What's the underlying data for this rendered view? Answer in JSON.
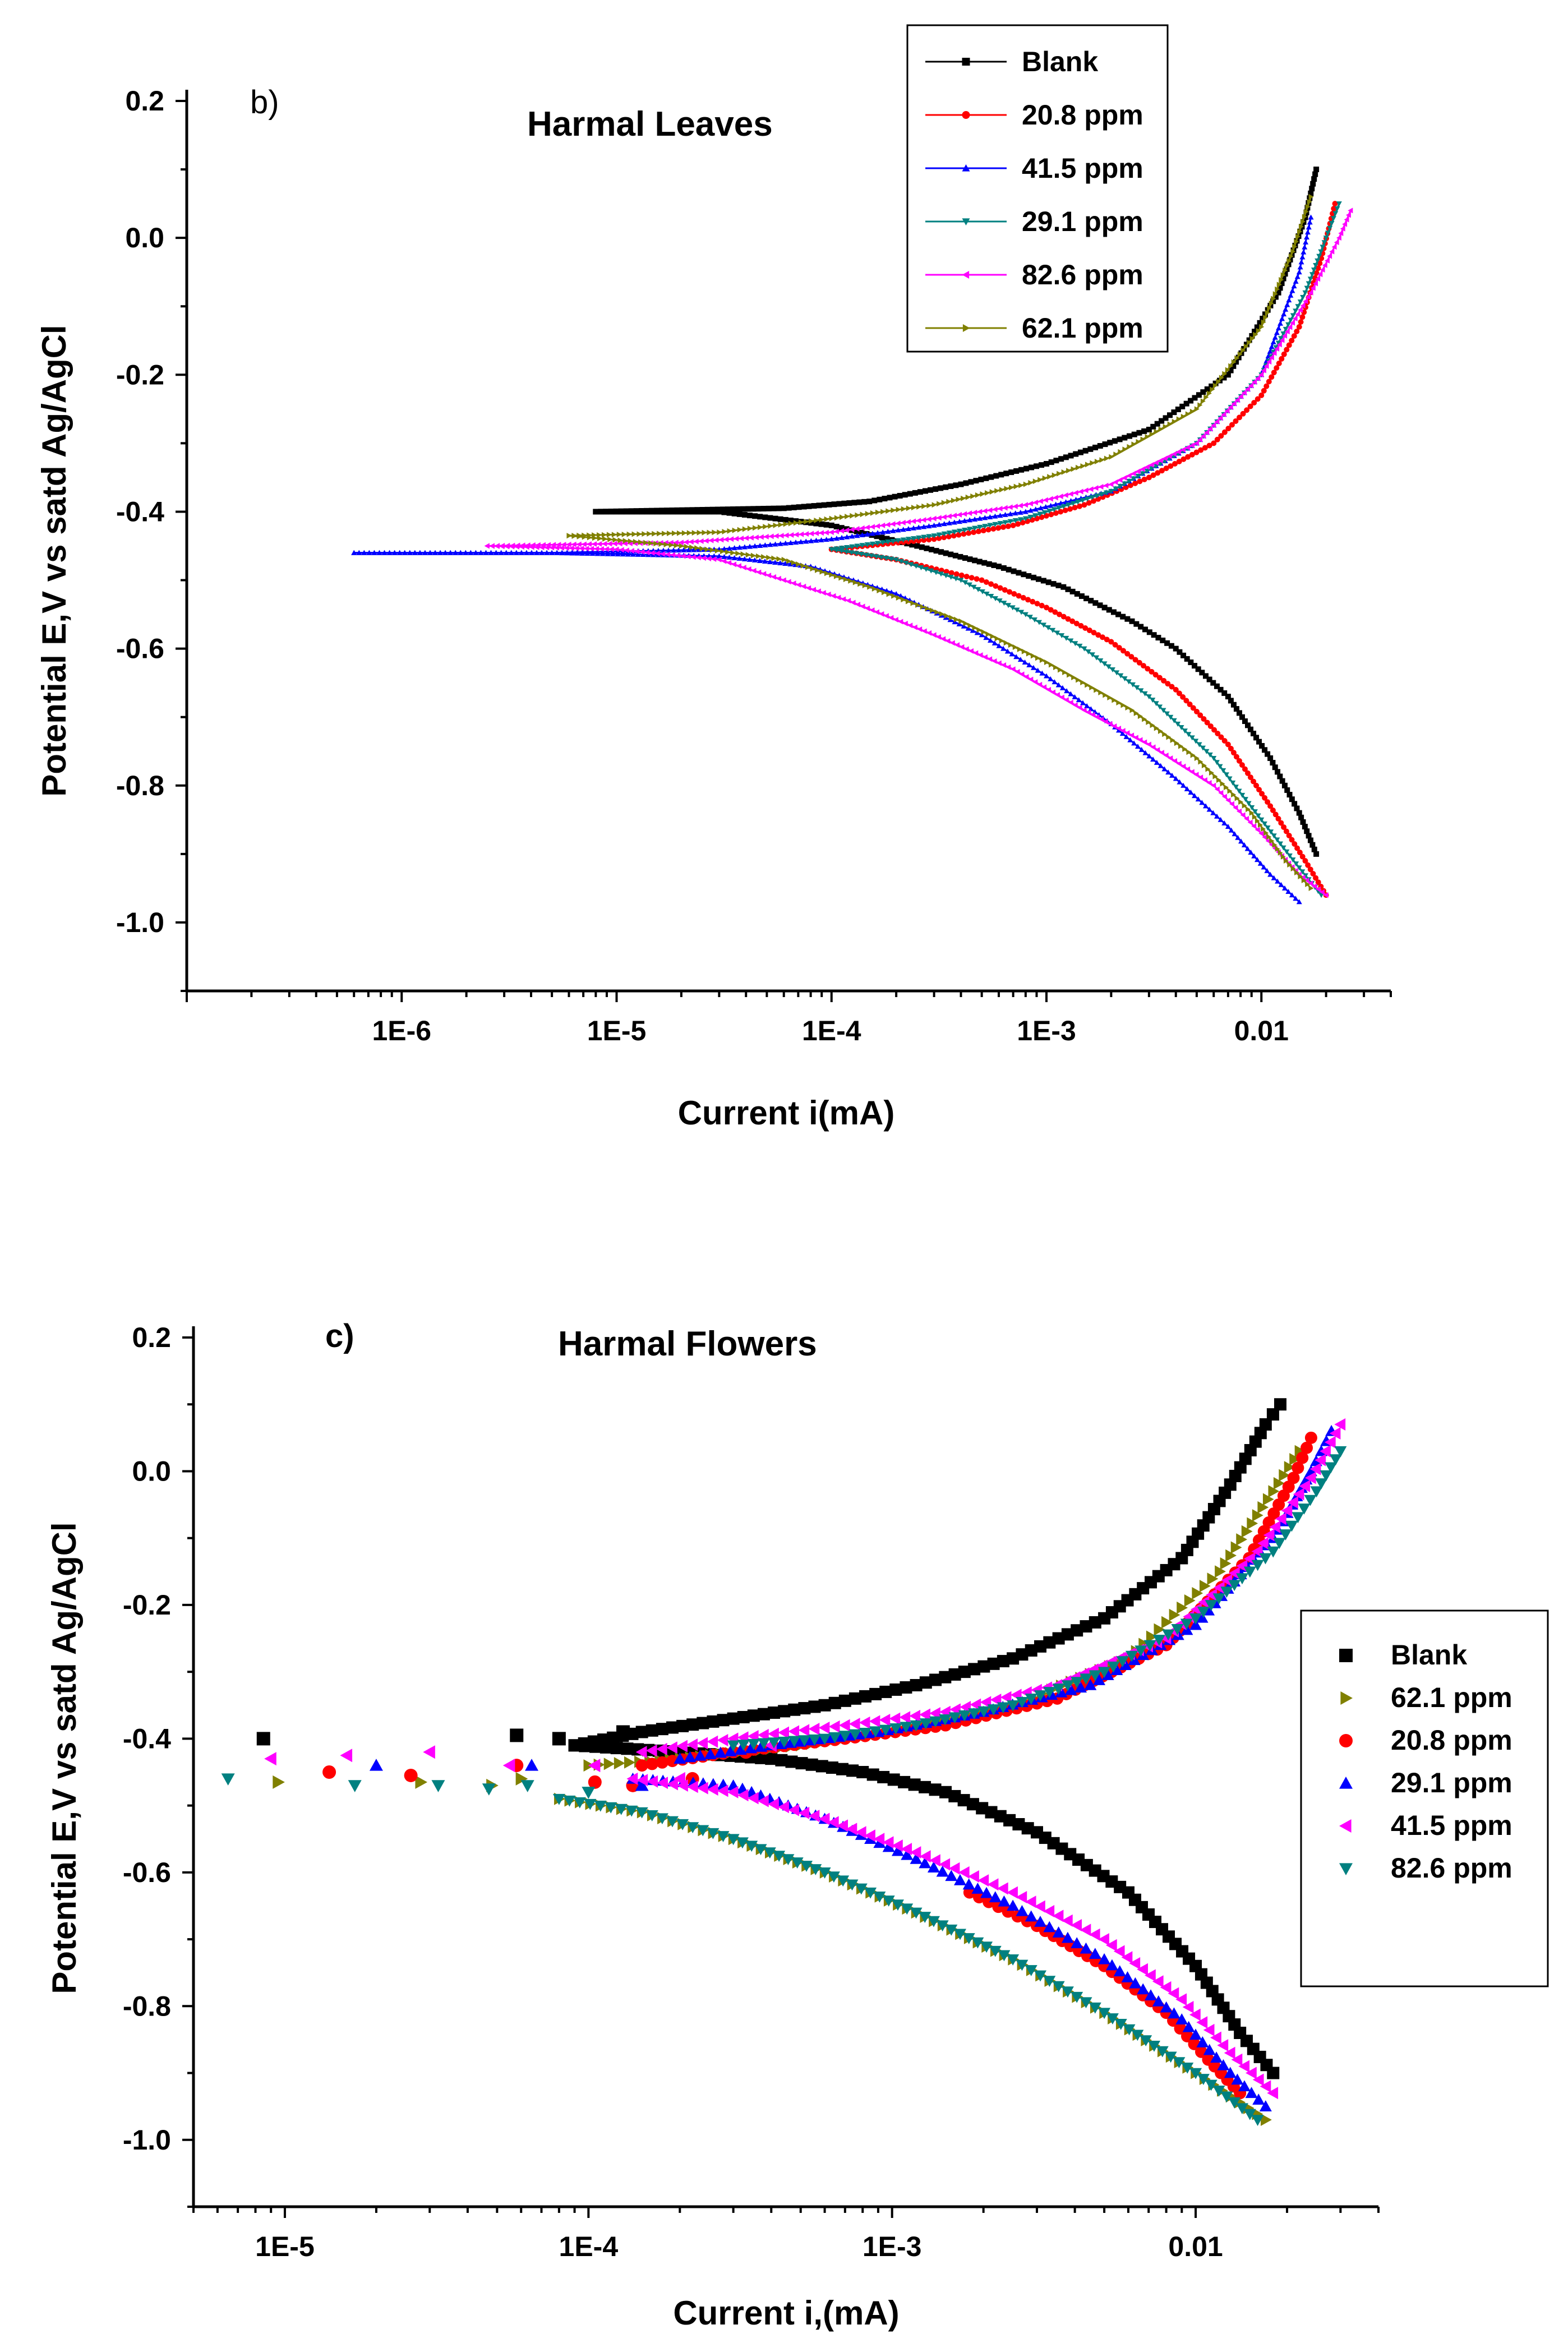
{
  "chart_data": [
    {
      "type": "line",
      "panel_label": "b)",
      "title": "Harmal Leaves",
      "xlabel": "Current i(mA)",
      "ylabel": "Potential E,V vs satd Ag/AgCl",
      "xscale": "log",
      "xlim": [
        1e-07,
        0.04
      ],
      "ylim": [
        -1.1,
        0.2
      ],
      "xticks": [
        1e-06,
        1e-05,
        0.0001,
        0.001,
        0.01
      ],
      "xtick_labels": [
        "1E-6",
        "1E-5",
        "1E-4",
        "1E-3",
        "0.01"
      ],
      "yticks": [
        0.2,
        0.0,
        -0.2,
        -0.4,
        -0.6,
        -0.8,
        -1.0
      ],
      "ytick_labels": [
        "0.2",
        "0.0",
        "-0.2",
        "-0.4",
        "-0.6",
        "-0.8",
        "-1.0"
      ],
      "legend_position": "top-right",
      "series": [
        {
          "name": "Blank",
          "color": "#000000",
          "marker": "square",
          "anodic": {
            "x": [
              8e-06,
              6e-05,
              0.00015,
              0.0004,
              0.001,
              0.003,
              0.007,
              0.012,
              0.016,
              0.018
            ],
            "y": [
              -0.4,
              -0.395,
              -0.385,
              -0.36,
              -0.33,
              -0.28,
              -0.2,
              -0.08,
              0.03,
              0.1
            ]
          },
          "cathodic": {
            "x": [
              8e-06,
              3e-05,
              0.0001,
              0.00025,
              0.0006,
              0.0012,
              0.0025,
              0.004,
              0.007,
              0.011,
              0.015,
              0.018
            ],
            "y": [
              -0.4,
              -0.4,
              -0.42,
              -0.45,
              -0.48,
              -0.51,
              -0.56,
              -0.6,
              -0.67,
              -0.76,
              -0.84,
              -0.9
            ]
          }
        },
        {
          "name": "20.8 ppm",
          "color": "#ff0000",
          "marker": "circle",
          "anodic": {
            "x": [
              0.0001,
              0.0003,
              0.0007,
              0.0015,
              0.003,
              0.006,
              0.01,
              0.015,
              0.019,
              0.022
            ],
            "y": [
              -0.455,
              -0.44,
              -0.42,
              -0.39,
              -0.35,
              -0.3,
              -0.23,
              -0.13,
              -0.03,
              0.05
            ]
          },
          "cathodic": {
            "x": [
              0.0001,
              0.0002,
              0.0005,
              0.001,
              0.002,
              0.004,
              0.007,
              0.011,
              0.016,
              0.02
            ],
            "y": [
              -0.455,
              -0.47,
              -0.5,
              -0.54,
              -0.59,
              -0.66,
              -0.74,
              -0.83,
              -0.91,
              -0.96
            ]
          }
        },
        {
          "name": "41.5 ppm",
          "color": "#0000ff",
          "marker": "triangle-up",
          "anodic": {
            "x": [
              6e-07,
              5e-06,
              3e-05,
              0.0001,
              0.0003,
              0.0008,
              0.002,
              0.005,
              0.01,
              0.015,
              0.017
            ],
            "y": [
              -0.46,
              -0.46,
              -0.455,
              -0.44,
              -0.42,
              -0.4,
              -0.37,
              -0.3,
              -0.2,
              -0.05,
              0.03
            ]
          },
          "cathodic": {
            "x": [
              6e-07,
              5e-06,
              3e-05,
              8e-05,
              0.0002,
              0.0005,
              0.001,
              0.002,
              0.004,
              0.007,
              0.011,
              0.015
            ],
            "y": [
              -0.46,
              -0.46,
              -0.465,
              -0.48,
              -0.52,
              -0.58,
              -0.64,
              -0.71,
              -0.79,
              -0.86,
              -0.93,
              -0.97
            ]
          }
        },
        {
          "name": "29.1 ppm",
          "color": "#008080",
          "marker": "triangle-down",
          "anodic": {
            "x": [
              0.0001,
              0.0003,
              0.0008,
              0.002,
              0.005,
              0.01,
              0.016,
              0.02,
              0.023
            ],
            "y": [
              -0.455,
              -0.435,
              -0.41,
              -0.37,
              -0.3,
              -0.2,
              -0.08,
              0.0,
              0.05
            ]
          },
          "cathodic": {
            "x": [
              0.0001,
              0.0002,
              0.0004,
              0.0008,
              0.0015,
              0.003,
              0.006,
              0.01,
              0.015,
              0.019
            ],
            "y": [
              -0.455,
              -0.47,
              -0.5,
              -0.55,
              -0.6,
              -0.67,
              -0.76,
              -0.85,
              -0.92,
              -0.96
            ]
          }
        },
        {
          "name": "82.6 ppm",
          "color": "#ff00ff",
          "marker": "triangle-left",
          "anodic": {
            "x": [
              2.5e-06,
              2e-05,
              0.0001,
              0.0003,
              0.0008,
              0.002,
              0.005,
              0.01,
              0.017,
              0.023,
              0.026
            ],
            "y": [
              -0.45,
              -0.445,
              -0.43,
              -0.41,
              -0.39,
              -0.36,
              -0.3,
              -0.2,
              -0.08,
              0.0,
              0.04
            ]
          },
          "cathodic": {
            "x": [
              2.5e-06,
              1e-05,
              3e-05,
              6e-05,
              0.00012,
              0.0003,
              0.0007,
              0.0015,
              0.003,
              0.006,
              0.01,
              0.015,
              0.02
            ],
            "y": [
              -0.45,
              -0.455,
              -0.47,
              -0.5,
              -0.53,
              -0.58,
              -0.63,
              -0.69,
              -0.74,
              -0.8,
              -0.87,
              -0.93,
              -0.96
            ]
          }
        },
        {
          "name": "62.1 ppm",
          "color": "#808000",
          "marker": "triangle-right",
          "anodic": {
            "x": [
              6e-06,
              3e-05,
              0.0001,
              0.0003,
              0.0008,
              0.002,
              0.005,
              0.01,
              0.014,
              0.017
            ],
            "y": [
              -0.435,
              -0.43,
              -0.41,
              -0.39,
              -0.36,
              -0.32,
              -0.25,
              -0.13,
              -0.02,
              0.06
            ]
          },
          "cathodic": {
            "x": [
              6e-06,
              2e-05,
              6e-05,
              0.00015,
              0.0004,
              0.001,
              0.0025,
              0.005,
              0.009,
              0.013,
              0.017
            ],
            "y": [
              -0.435,
              -0.45,
              -0.47,
              -0.51,
              -0.56,
              -0.62,
              -0.69,
              -0.76,
              -0.84,
              -0.91,
              -0.95
            ]
          }
        }
      ]
    },
    {
      "type": "scatter",
      "panel_label": "c)",
      "title": "Harmal Flowers",
      "xlabel": "Current i,(mA)",
      "ylabel": "Potential E,V vs satd Ag/AgCl",
      "xscale": "log",
      "xlim": [
        5e-06,
        0.04
      ],
      "ylim": [
        -1.1,
        0.2
      ],
      "xticks": [
        1e-05,
        0.0001,
        0.001,
        0.01
      ],
      "xtick_labels": [
        "1E-5",
        "1E-4",
        "1E-3",
        "0.01"
      ],
      "yticks": [
        0.2,
        0.0,
        -0.2,
        -0.4,
        -0.6,
        -0.8,
        -1.0
      ],
      "ytick_labels": [
        "0.2",
        "0.0",
        "-0.2",
        "-0.4",
        "-0.6",
        "-0.8",
        "-1.0"
      ],
      "legend_position": "right",
      "series": [
        {
          "name": "Blank",
          "color": "#000000",
          "marker": "square",
          "anodic": {
            "x": [
              9e-05,
              0.00015,
              0.0003,
              0.0006,
              0.0012,
              0.0025,
              0.005,
              0.009,
              0.013,
              0.017,
              0.019
            ],
            "y": [
              -0.41,
              -0.39,
              -0.37,
              -0.35,
              -0.32,
              -0.28,
              -0.22,
              -0.13,
              -0.02,
              0.07,
              0.1
            ]
          },
          "cathodic": {
            "x": [
              9e-05,
              0.0002,
              0.0004,
              0.0008,
              0.0015,
              0.003,
              0.006,
              0.01,
              0.014,
              0.018
            ],
            "y": [
              -0.41,
              -0.42,
              -0.43,
              -0.45,
              -0.48,
              -0.54,
              -0.63,
              -0.74,
              -0.84,
              -0.9
            ]
          },
          "scatter": {
            "x": [
              8.5e-06,
              5.8e-05,
              8e-05,
              0.00013
            ],
            "y": [
              -0.4,
              -0.395,
              -0.4,
              -0.39
            ]
          }
        },
        {
          "name": "62.1 ppm",
          "color": "#808000",
          "marker": "triangle-right",
          "anodic": {
            "x": [
              0.0001,
              0.0002,
              0.0005,
              0.001,
              0.0025,
              0.006,
              0.012,
              0.018,
              0.022
            ],
            "y": [
              -0.44,
              -0.43,
              -0.41,
              -0.39,
              -0.35,
              -0.28,
              -0.15,
              -0.03,
              0.03
            ]
          },
          "cathodic": {
            "x": [
              8e-05,
              0.00015,
              0.0003,
              0.0006,
              0.0012,
              0.0025,
              0.005,
              0.01,
              0.017
            ],
            "y": [
              -0.49,
              -0.51,
              -0.55,
              -0.6,
              -0.66,
              -0.73,
              -0.81,
              -0.9,
              -0.97
            ]
          },
          "scatter": {
            "x": [
              9.5e-06,
              2.8e-05,
              4.8e-05,
              6e-05
            ],
            "y": [
              -0.465,
              -0.465,
              -0.47,
              -0.46
            ]
          }
        },
        {
          "name": "20.8 ppm",
          "color": "#ff0000",
          "marker": "circle",
          "anodic": {
            "x": [
              0.00015,
              0.0003,
              0.0007,
              0.0015,
              0.0035,
              0.008,
              0.015,
              0.021,
              0.024
            ],
            "y": [
              -0.44,
              -0.42,
              -0.4,
              -0.38,
              -0.34,
              -0.26,
              -0.13,
              -0.01,
              0.05
            ]
          },
          "cathodic": {
            "x": [
              0.0018,
              0.003,
              0.005,
              0.008,
              0.011,
              0.014
            ],
            "y": [
              -0.63,
              -0.68,
              -0.74,
              -0.81,
              -0.88,
              -0.93
            ]
          },
          "scatter": {
            "x": [
              1.4e-05,
              2.6e-05,
              5.8e-05,
              0.000105,
              0.00014,
              0.00022,
              0.00033
            ],
            "y": [
              -0.45,
              -0.455,
              -0.44,
              -0.465,
              -0.47,
              -0.46,
              -0.42
            ]
          }
        },
        {
          "name": "29.1 ppm",
          "color": "#0000ff",
          "marker": "triangle-up",
          "anodic": {
            "x": [
              0.0002,
              0.0004,
              0.0009,
              0.002,
              0.0045,
              0.01,
              0.018,
              0.024,
              0.028
            ],
            "y": [
              -0.43,
              -0.41,
              -0.39,
              -0.36,
              -0.32,
              -0.23,
              -0.1,
              0.0,
              0.06
            ]
          },
          "cathodic": {
            "x": [
              0.00014,
              0.0003,
              0.0006,
              0.0012,
              0.0025,
              0.005,
              0.009,
              0.013,
              0.017
            ],
            "y": [
              -0.46,
              -0.47,
              -0.52,
              -0.58,
              -0.65,
              -0.73,
              -0.82,
              -0.9,
              -0.95
            ]
          },
          "scatter": {
            "x": [
              2e-05,
              6.5e-05,
              0.00015
            ],
            "y": [
              -0.44,
              -0.44,
              -0.47
            ]
          }
        },
        {
          "name": "41.5 ppm",
          "color": "#ff00ff",
          "marker": "triangle-left",
          "anodic": {
            "x": [
              0.00015,
              0.0003,
              0.0007,
              0.0015,
              0.0035,
              0.008,
              0.016,
              0.024,
              0.03
            ],
            "y": [
              -0.42,
              -0.4,
              -0.38,
              -0.36,
              -0.32,
              -0.25,
              -0.12,
              -0.01,
              0.07
            ]
          },
          "cathodic": {
            "x": [
              0.00014,
              0.0003,
              0.0006,
              0.0012,
              0.0025,
              0.005,
              0.009,
              0.013,
              0.018
            ],
            "y": [
              -0.46,
              -0.48,
              -0.52,
              -0.57,
              -0.63,
              -0.7,
              -0.79,
              -0.87,
              -0.93
            ]
          },
          "scatter": {
            "x": [
              9e-06,
              1.6e-05,
              3e-05,
              5.5e-05,
              0.000105,
              0.0002,
              0.0004
            ],
            "y": [
              -0.43,
              -0.425,
              -0.42,
              -0.44,
              -0.44,
              -0.46,
              -0.41
            ]
          }
        },
        {
          "name": "82.6 ppm",
          "color": "#008080",
          "marker": "triangle-down",
          "anodic": {
            "x": [
              0.0003,
              0.0006,
              0.0012,
              0.0025,
              0.005,
              0.01,
              0.018,
              0.025,
              0.03
            ],
            "y": [
              -0.41,
              -0.4,
              -0.38,
              -0.35,
              -0.3,
              -0.22,
              -0.12,
              -0.03,
              0.03
            ]
          },
          "cathodic": {
            "x": [
              8e-05,
              0.00015,
              0.0003,
              0.0006,
              0.0012,
              0.0025,
              0.005,
              0.01,
              0.016
            ],
            "y": [
              -0.49,
              -0.51,
              -0.55,
              -0.6,
              -0.66,
              -0.73,
              -0.81,
              -0.9,
              -0.97
            ]
          },
          "scatter": {
            "x": [
              6.5e-06,
              1.7e-05,
              3.2e-05,
              4.7e-05,
              6.3e-05,
              0.0001
            ],
            "y": [
              -0.46,
              -0.47,
              -0.47,
              -0.475,
              -0.47,
              -0.48
            ]
          }
        }
      ]
    }
  ]
}
